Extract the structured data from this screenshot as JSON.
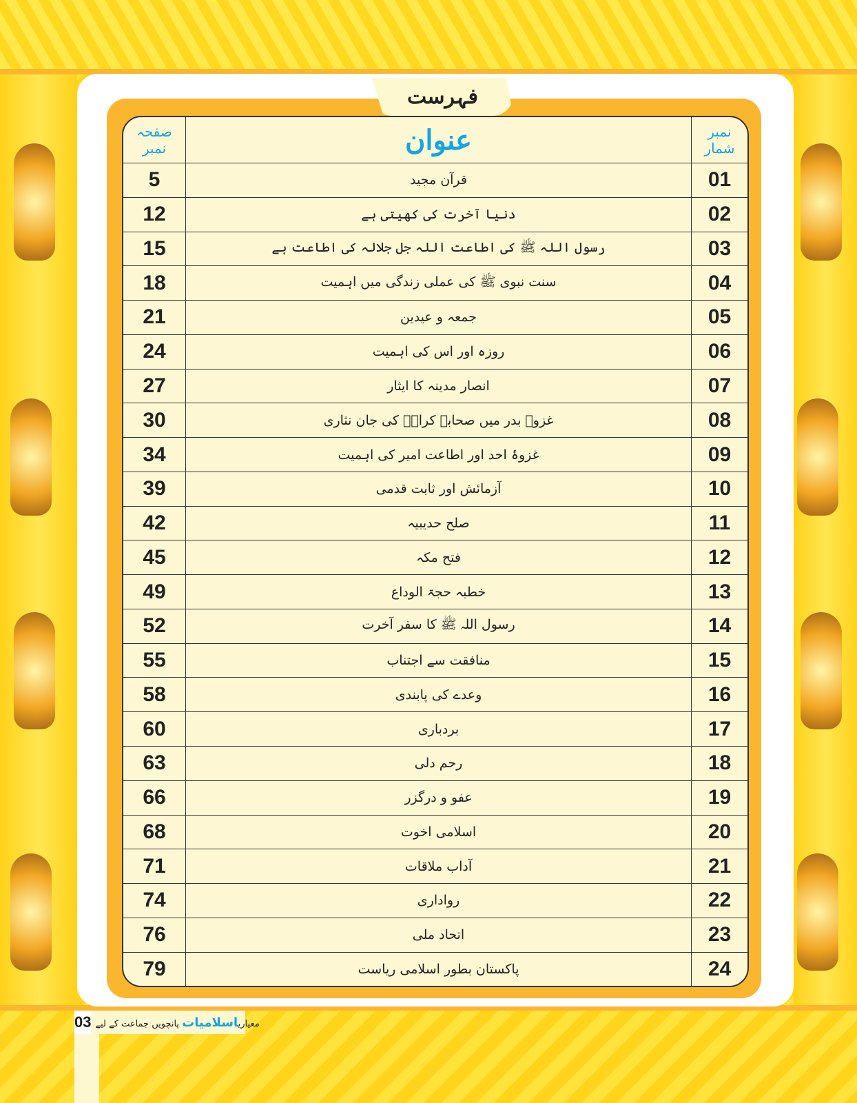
{
  "header": {
    "tab_title": "فہرست",
    "col_page": "صفحہ نمبر",
    "col_title": "عنوان",
    "col_num": "نمبر شمار"
  },
  "rows": [
    {
      "num": "01",
      "title": "قرآن مجید",
      "page": "5"
    },
    {
      "num": "02",
      "title": "دنیا آخرت کی کھیتی ہے",
      "page": "12"
    },
    {
      "num": "03",
      "title": "رسول اللہ ﷺ کی اطاعت اللہ جل جلالہ کی اطاعت ہے",
      "page": "15"
    },
    {
      "num": "04",
      "title": "سنت نبوی ﷺ کی عملی زندگی میں اہمیت",
      "page": "18"
    },
    {
      "num": "05",
      "title": "جمعہ و عیدین",
      "page": "21"
    },
    {
      "num": "06",
      "title": "روزہ اور اس کی اہمیت",
      "page": "24"
    },
    {
      "num": "07",
      "title": "انصار مدینہ کا ایثار",
      "page": "27"
    },
    {
      "num": "08",
      "title": "غزوۂ بدر میں صحابہ کرامؓ کی جان نثاری",
      "page": "30"
    },
    {
      "num": "09",
      "title": "غزوۂ احد اور اطاعت امیر کی اہمیت",
      "page": "34"
    },
    {
      "num": "10",
      "title": "آزمائش اور ثابت قدمی",
      "page": "39"
    },
    {
      "num": "11",
      "title": "صلح حدیبیہ",
      "page": "42"
    },
    {
      "num": "12",
      "title": "فتح مکہ",
      "page": "45"
    },
    {
      "num": "13",
      "title": "خطبہ حجۃ الوداع",
      "page": "49"
    },
    {
      "num": "14",
      "title": "رسول اللہ ﷺ کا سفر آخرت",
      "page": "52"
    },
    {
      "num": "15",
      "title": "منافقت سے اجتناب",
      "page": "55"
    },
    {
      "num": "16",
      "title": "وعدے کی پابندی",
      "page": "58"
    },
    {
      "num": "17",
      "title": "بردباری",
      "page": "60"
    },
    {
      "num": "18",
      "title": "رحم دلی",
      "page": "63"
    },
    {
      "num": "19",
      "title": "عفو و درگزر",
      "page": "66"
    },
    {
      "num": "20",
      "title": "اسلامی اخوت",
      "page": "68"
    },
    {
      "num": "21",
      "title": "آداب ملاقات",
      "page": "71"
    },
    {
      "num": "22",
      "title": "رواداری",
      "page": "74"
    },
    {
      "num": "23",
      "title": "اتحاد ملی",
      "page": "76"
    },
    {
      "num": "24",
      "title": "پاکستان بطور اسلامی ریاست",
      "page": "79"
    }
  ],
  "footer": {
    "page_number": "03",
    "prefix": "معیاری",
    "book": "اسلامیات",
    "suffix": "پانچویں جماعت کے لیے"
  },
  "colors": {
    "accent": "#14a5e3",
    "frame": "#fbb62f",
    "cell_bg": "#fdf8d3"
  }
}
